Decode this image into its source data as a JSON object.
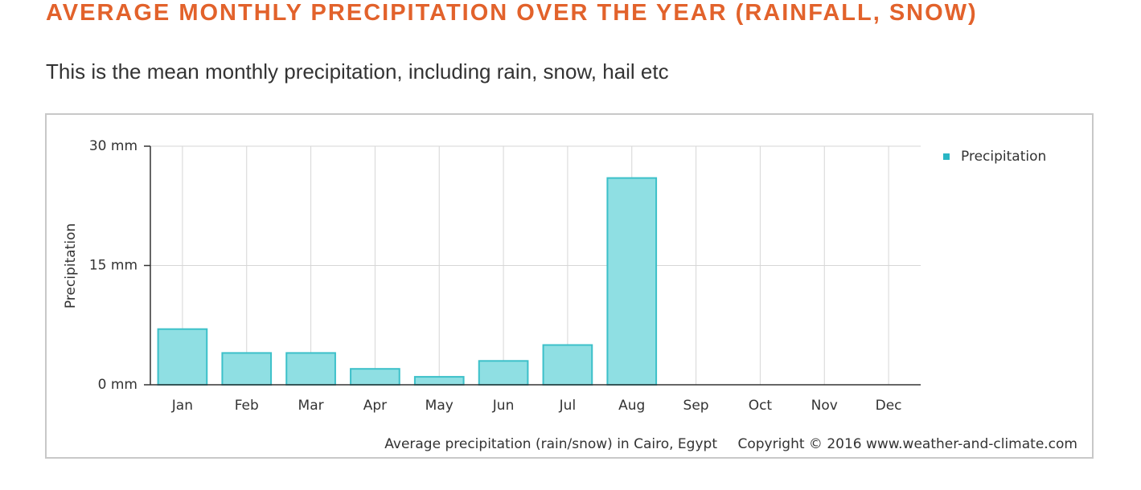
{
  "header": {
    "title": "AVERAGE MONTHLY PRECIPITATION OVER THE YEAR (RAINFALL, SNOW)",
    "subtitle": "This is the mean monthly precipitation, including rain, snow, hail etc"
  },
  "chart_data": {
    "type": "bar",
    "y_label": "Precipitation",
    "categories": [
      "Jan",
      "Feb",
      "Mar",
      "Apr",
      "May",
      "Jun",
      "Jul",
      "Aug",
      "Sep",
      "Oct",
      "Nov",
      "Dec"
    ],
    "series": [
      {
        "name": "Precipitation",
        "color": "#8fdfe3",
        "values": [
          7,
          4,
          4,
          2,
          1,
          3,
          5,
          26,
          0,
          0,
          0,
          0
        ]
      }
    ],
    "ylim": [
      0,
      30
    ],
    "yticks": [
      {
        "value": 0,
        "label": "0 mm"
      },
      {
        "value": 15,
        "label": "15 mm"
      },
      {
        "value": 30,
        "label": "30 mm"
      }
    ],
    "grid": true,
    "legend": "top-right",
    "caption": "Average precipitation (rain/snow) in Cairo, Egypt",
    "copyright": "Copyright © 2016 www.weather-and-climate.com"
  }
}
